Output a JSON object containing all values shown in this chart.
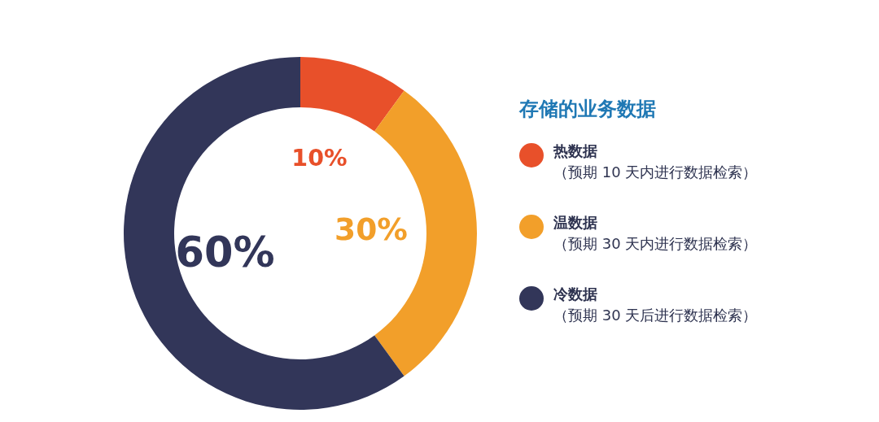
{
  "chart_data": {
    "type": "donut",
    "categories": [
      "热数据",
      "温数据",
      "冷数据"
    ],
    "values": [
      10,
      30,
      60
    ],
    "colors": [
      "#e8502a",
      "#f29f2a",
      "#323659"
    ],
    "value_labels": [
      "10%",
      "30%",
      "60%"
    ],
    "legend_title": "存储的业务数据",
    "legend": "right",
    "annotations": [
      "（预期 10 天内进行数据检索）",
      "（预期 30 天内进行数据检索）",
      "（预期 30 天后进行数据检索）"
    ]
  }
}
